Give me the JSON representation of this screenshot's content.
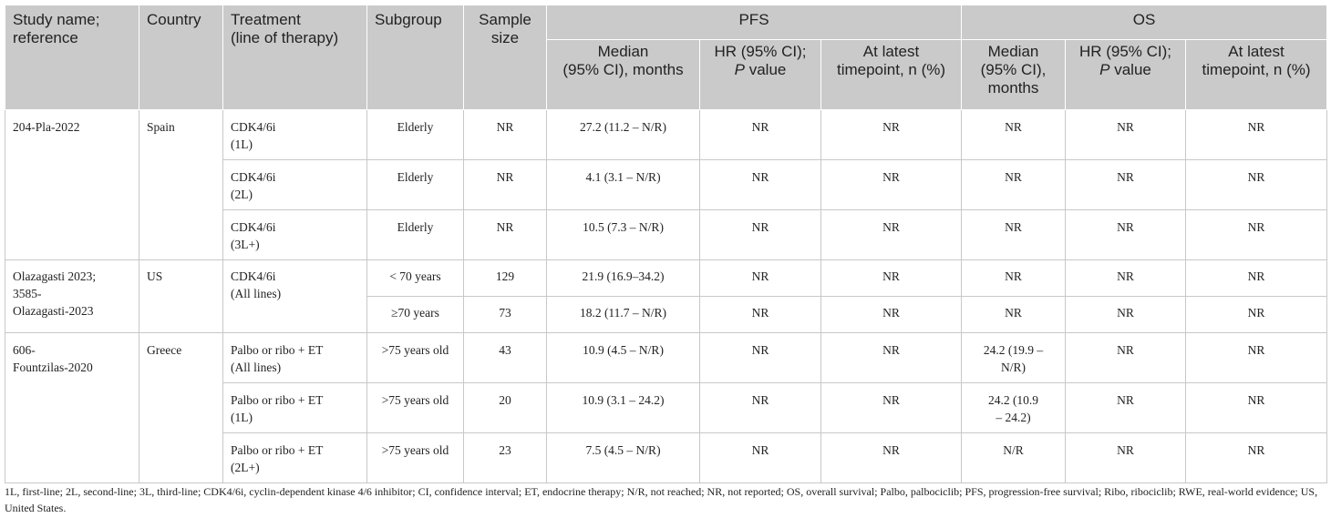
{
  "header": {
    "study": "Study name;\nreference",
    "country": "Country",
    "treatment": "Treatment\n(line of therapy)",
    "subgroup": "Subgroup",
    "sample": "Sample\nsize",
    "pfs": "PFS",
    "os": "OS",
    "pfs_median": "Median\n(95% CI), months",
    "pfs_hr_a": "HR (95% CI);",
    "pfs_hr_p": "P",
    "pfs_hr_b": " value",
    "pfs_latest": "At latest\ntimepoint, n (%)",
    "os_median": "Median\n(95% CI),\nmonths",
    "os_hr_a": "HR (95% CI);",
    "os_hr_p": "P",
    "os_hr_b": " value",
    "os_latest": "At latest\ntimepoint, n (%)"
  },
  "groups": [
    {
      "study": "204-Pla-2022",
      "country": "Spain",
      "rows": [
        {
          "treatment": "CDK4/6i\n(1L)",
          "subgroup": "Elderly",
          "sample": "NR",
          "pfs_median": "27.2 (11.2 – N/R)",
          "pfs_hr": "NR",
          "pfs_latest": "NR",
          "os_median": "NR",
          "os_hr": "NR",
          "os_latest": "NR"
        },
        {
          "treatment": "CDK4/6i\n(2L)",
          "subgroup": "Elderly",
          "sample": "NR",
          "pfs_median": "4.1 (3.1 – N/R)",
          "pfs_hr": "NR",
          "pfs_latest": "NR",
          "os_median": "NR",
          "os_hr": "NR",
          "os_latest": "NR"
        },
        {
          "treatment": "CDK4/6i\n(3L+)",
          "subgroup": "Elderly",
          "sample": "NR",
          "pfs_median": "10.5 (7.3 – N/R)",
          "pfs_hr": "NR",
          "pfs_latest": "NR",
          "os_median": "NR",
          "os_hr": "NR",
          "os_latest": "NR"
        }
      ]
    },
    {
      "study": "Olazagasti 2023;\n3585-\nOlazagasti-2023",
      "country": "US",
      "treatment": "CDK4/6i\n(All lines)",
      "rows": [
        {
          "subgroup": "< 70 years",
          "sample": "129",
          "pfs_median": "21.9 (16.9–34.2)",
          "pfs_hr": "NR",
          "pfs_latest": "NR",
          "os_median": "NR",
          "os_hr": "NR",
          "os_latest": "NR"
        },
        {
          "subgroup": "≥70 years",
          "sample": "73",
          "pfs_median": "18.2 (11.7 – N/R)",
          "pfs_hr": "NR",
          "pfs_latest": "NR",
          "os_median": "NR",
          "os_hr": "NR",
          "os_latest": "NR"
        }
      ]
    },
    {
      "study": "606-\nFountzilas-2020",
      "country": "Greece",
      "rows": [
        {
          "treatment": "Palbo or ribo + ET\n(All lines)",
          "subgroup": ">75 years old",
          "sample": "43",
          "pfs_median": "10.9 (4.5 – N/R)",
          "pfs_hr": "NR",
          "pfs_latest": "NR",
          "os_median": "24.2 (19.9 –\nN/R)",
          "os_hr": "NR",
          "os_latest": "NR"
        },
        {
          "treatment": "Palbo or ribo + ET\n(1L)",
          "subgroup": ">75 years old",
          "sample": "20",
          "pfs_median": "10.9 (3.1 – 24.2)",
          "pfs_hr": "NR",
          "pfs_latest": "NR",
          "os_median": "24.2 (10.9\n– 24.2)",
          "os_hr": "NR",
          "os_latest": "NR"
        },
        {
          "treatment": "Palbo or ribo + ET\n(2L+)",
          "subgroup": ">75 years old",
          "sample": "23",
          "pfs_median": "7.5 (4.5 – N/R)",
          "pfs_hr": "NR",
          "pfs_latest": "NR",
          "os_median": "N/R",
          "os_hr": "NR",
          "os_latest": "NR"
        }
      ]
    }
  ],
  "footnote": "1L, first-line; 2L, second-line; 3L, third-line; CDK4/6i, cyclin-dependent kinase 4/6 inhibitor; CI, confidence interval; ET, endocrine therapy; N/R, not reached; NR, not reported; OS, overall survival; Palbo, palbociclib; PFS, progression-free survival; Ribo, ribociclib; RWE, real-world evidence; US, United States."
}
